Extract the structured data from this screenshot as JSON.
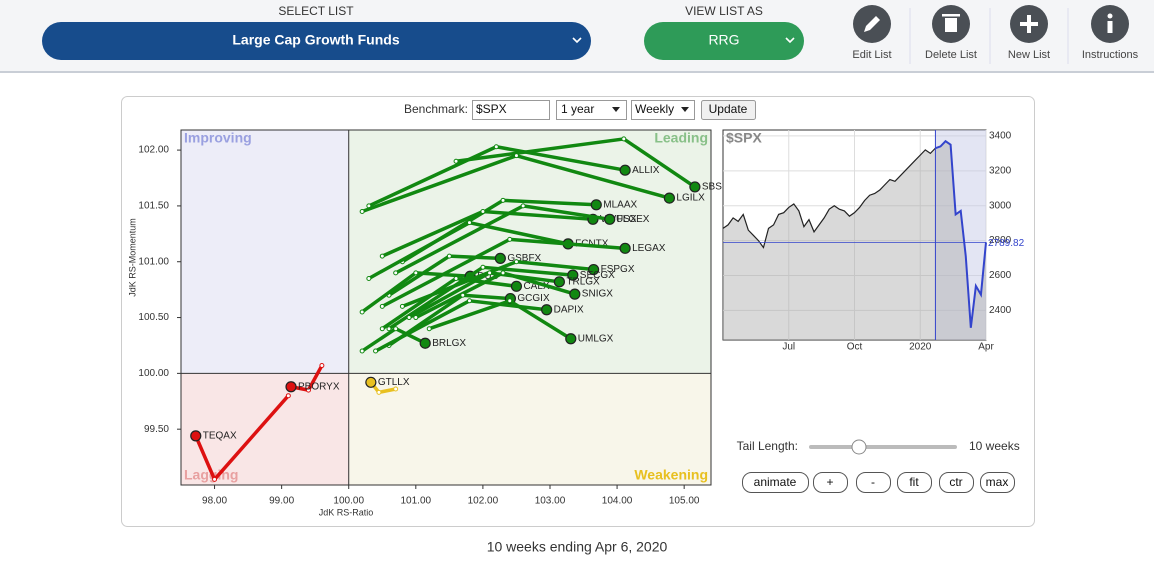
{
  "toolbar": {
    "select_list_label": "SELECT LIST",
    "list": "Large Cap Growth Funds",
    "view_label": "VIEW LIST AS",
    "view": "RRG",
    "buttons": [
      "Edit List",
      "Delete List",
      "New List",
      "Instructions"
    ]
  },
  "controls": {
    "benchmark_label": "Benchmark:",
    "benchmark": "$SPX",
    "period": "1 year",
    "frequency": "Weekly",
    "update": "Update",
    "tail_label": "Tail Length:",
    "tail_length": {
      "value": 10,
      "label": "10 weeks"
    },
    "buttons": [
      "animate",
      "+",
      "-",
      "fit",
      "ctr",
      "max"
    ]
  },
  "chart_data": [
    {
      "type": "rrg",
      "x_label": "JdK RS-Ratio",
      "y_label": "JdK RS-Momentum",
      "quadrants": {
        "improving": "Improving",
        "leading": "Leading",
        "weakening": "Weakening",
        "lagging": "Lagging"
      },
      "reference": 100,
      "xlim": [
        97.5,
        105.4
      ],
      "ylim": [
        99.0,
        102.18
      ],
      "xticks": [
        {
          "value": 98,
          "label": "98.00"
        },
        {
          "value": 99,
          "label": "99.00"
        },
        {
          "value": 100,
          "label": "100.00"
        },
        {
          "value": 101,
          "label": "101.00"
        },
        {
          "value": 102,
          "label": "102.00"
        },
        {
          "value": 103,
          "label": "103.00"
        },
        {
          "value": 104,
          "label": "104.00"
        },
        {
          "value": 105,
          "label": "105.00"
        }
      ],
      "yticks": [
        {
          "value": 99.5,
          "label": "99.50"
        },
        {
          "value": 100,
          "label": "100.00"
        },
        {
          "value": 100.5,
          "label": "100.50"
        },
        {
          "value": 101,
          "label": "101.00"
        },
        {
          "value": 101.5,
          "label": "101.50"
        },
        {
          "value": 102,
          "label": "102.00"
        }
      ],
      "series": [
        {
          "name": "ALLIX",
          "color": "#118811",
          "x": [
            100.3,
            102.2,
            104.12
          ],
          "y": [
            101.5,
            102.03,
            101.82
          ]
        },
        {
          "name": "SBSPX",
          "color": "#118811",
          "x": [
            101.6,
            104.1,
            105.16
          ],
          "y": [
            101.9,
            102.1,
            101.67
          ]
        },
        {
          "name": "LGILX",
          "color": "#118811",
          "x": [
            100.2,
            102.5,
            104.78
          ],
          "y": [
            101.45,
            101.95,
            101.57
          ]
        },
        {
          "name": "MLAAX",
          "color": "#118811",
          "x": [
            100.8,
            102.3,
            103.69
          ],
          "y": [
            101.0,
            101.55,
            101.51
          ]
        },
        {
          "name": "VWUSX",
          "color": "#118811",
          "x": [
            100.5,
            102.0,
            103.64
          ],
          "y": [
            101.05,
            101.45,
            101.38
          ]
        },
        {
          "name": "FLGEX",
          "color": "#118811",
          "x": [
            100.7,
            102.6,
            103.89
          ],
          "y": [
            100.9,
            101.5,
            101.38
          ]
        },
        {
          "name": "FCNTX",
          "color": "#118811",
          "x": [
            100.3,
            101.8,
            103.27
          ],
          "y": [
            100.85,
            101.35,
            101.16
          ]
        },
        {
          "name": "LEGAX",
          "color": "#118811",
          "x": [
            100.5,
            102.4,
            104.12
          ],
          "y": [
            100.6,
            101.2,
            101.12
          ]
        },
        {
          "name": "GSBFX",
          "color": "#118811",
          "x": [
            100.6,
            101.5,
            102.26
          ],
          "y": [
            100.7,
            101.05,
            101.03
          ]
        },
        {
          "name": "DUS",
          "color": "#118811",
          "x": [
            100.2,
            101.0,
            101.81
          ],
          "y": [
            100.55,
            100.9,
            100.87
          ]
        },
        {
          "name": "FSPGX",
          "color": "#118811",
          "x": [
            100.8,
            102.5,
            103.65
          ],
          "y": [
            100.6,
            101.0,
            100.93
          ]
        },
        {
          "name": "SECGX",
          "color": "#118811",
          "x": [
            100.6,
            102.0,
            103.34
          ],
          "y": [
            100.4,
            100.95,
            100.88
          ]
        },
        {
          "name": "TRLGX",
          "color": "#118811",
          "x": [
            100.9,
            102.1,
            103.14
          ],
          "y": [
            100.5,
            100.9,
            100.82
          ]
        },
        {
          "name": "CALX",
          "color": "#118811",
          "x": [
            100.5,
            101.6,
            102.5
          ],
          "y": [
            100.4,
            100.85,
            100.78
          ]
        },
        {
          "name": "SNIGX",
          "color": "#118811",
          "x": [
            101.0,
            102.3,
            103.37
          ],
          "y": [
            100.5,
            100.9,
            100.71
          ]
        },
        {
          "name": "GCGIX",
          "color": "#118811",
          "x": [
            100.6,
            101.7,
            102.41
          ],
          "y": [
            100.25,
            100.7,
            100.67
          ]
        },
        {
          "name": "DAPIX",
          "color": "#118811",
          "x": [
            100.4,
            101.8,
            102.95
          ],
          "y": [
            100.2,
            100.65,
            100.57
          ]
        },
        {
          "name": "UMLGX",
          "color": "#118811",
          "x": [
            101.2,
            102.4,
            103.31
          ],
          "y": [
            100.4,
            100.65,
            100.31
          ]
        },
        {
          "name": "BRLGX",
          "color": "#118811",
          "x": [
            100.2,
            100.7,
            101.14
          ],
          "y": [
            100.2,
            100.4,
            100.27
          ]
        },
        {
          "name": "GTLLX",
          "color": "#e8c020",
          "x": [
            100.7,
            100.45,
            100.33
          ],
          "y": [
            99.86,
            99.83,
            99.92
          ]
        },
        {
          "name": "PBORYX",
          "color": "#dd1111",
          "x": [
            99.6,
            99.4,
            99.14
          ],
          "y": [
            100.07,
            99.85,
            99.88
          ]
        },
        {
          "name": "TEQAX",
          "color": "#dd1111",
          "x": [
            99.1,
            98.0,
            97.72
          ],
          "y": [
            99.8,
            99.05,
            99.44
          ]
        }
      ]
    },
    {
      "type": "line",
      "title": "$SPX",
      "color": "#222222",
      "tail_color": "#3344cc",
      "categories": [
        null,
        null,
        null,
        null,
        null,
        null,
        null,
        null,
        null,
        null,
        null,
        null,
        null,
        "Jul",
        null,
        null,
        null,
        null,
        null,
        null,
        null,
        null,
        null,
        null,
        null,
        null,
        "Oct",
        null,
        null,
        null,
        null,
        null,
        null,
        null,
        null,
        null,
        null,
        null,
        null,
        "2020",
        null,
        null,
        null,
        null,
        null,
        null,
        null,
        null,
        null,
        null,
        null,
        null,
        "Apr"
      ],
      "values": [
        2870,
        2890,
        2930,
        2910,
        2950,
        2860,
        2830,
        2800,
        2760,
        2870,
        2890,
        2950,
        2960,
        2990,
        3010,
        2970,
        2880,
        2920,
        2850,
        2890,
        2930,
        2980,
        3000,
        2980,
        2970,
        2940,
        2960,
        2990,
        3030,
        3060,
        3070,
        3090,
        3120,
        3150,
        3140,
        3170,
        3200,
        3230,
        3260,
        3290,
        3320,
        3300,
        3330,
        3340,
        3370,
        3350,
        2950,
        2970,
        2710,
        2300,
        2540,
        2490,
        2789.82
      ],
      "ylim": [
        2230,
        3434
      ],
      "yticks": [
        2400,
        2600,
        2800,
        3000,
        3200,
        3400
      ]
    }
  ],
  "footer": "10 weeks ending Apr 6, 2020"
}
